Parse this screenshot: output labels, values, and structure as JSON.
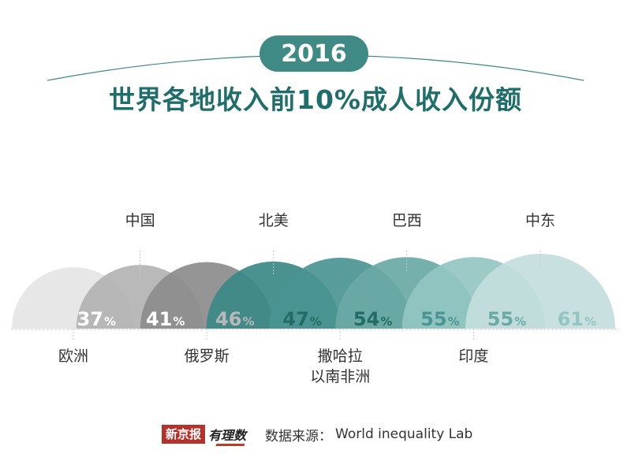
{
  "header": {
    "year": "2016"
  },
  "footer": {
    "logo_text": "新京报",
    "logo_script": "有理数",
    "source_label": "数据来源：",
    "source_value": "World inequality Lab"
  },
  "chart_data": {
    "type": "area",
    "title": "世界各地收入前10%成人收入份额",
    "unit": "%",
    "regions": [
      {
        "name": "欧洲",
        "value": 37,
        "label_side": "below"
      },
      {
        "name": "中国",
        "value": 41,
        "label_side": "above"
      },
      {
        "name": "俄罗斯",
        "value": 46,
        "label_side": "below"
      },
      {
        "name": "北美",
        "value": 47,
        "label_side": "above"
      },
      {
        "name": "撒哈拉\n以南非洲",
        "value": 54,
        "label_side": "below"
      },
      {
        "name": "巴西",
        "value": 55,
        "label_side": "above"
      },
      {
        "name": "印度",
        "value": 55,
        "label_side": "below"
      },
      {
        "name": "中东",
        "value": 61,
        "label_side": "above"
      }
    ],
    "colors": [
      "#e5e5e5",
      "#b3b3b3",
      "#8c8c8c",
      "#3a8985",
      "#4a9592",
      "#6aa9a6",
      "#93c5c2",
      "#c3dedd"
    ],
    "value_label_colors": [
      "#ffffff",
      "#ffffff",
      "#b8b8b8",
      "#236b67",
      "#236b67",
      "#4a9592",
      "#6aa9a6",
      "#93c5c2"
    ],
    "accent_color": "#1f6e6b"
  }
}
